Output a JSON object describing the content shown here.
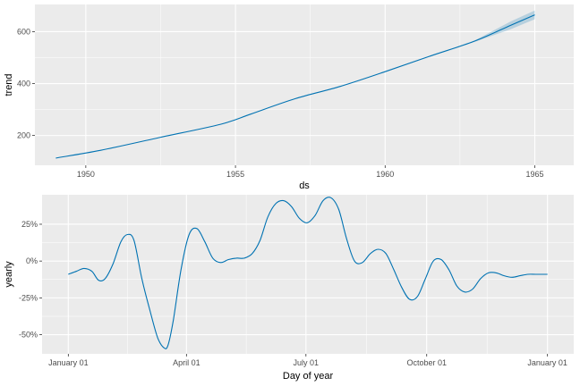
{
  "chart_data": [
    {
      "type": "line",
      "title": "",
      "xlabel": "ds",
      "ylabel": "trend",
      "xlim": [
        1948.3,
        1966.3
      ],
      "ylim": [
        85,
        705
      ],
      "x_ticks": [
        1950,
        1955,
        1960,
        1965
      ],
      "y_ticks": [
        200,
        400,
        600
      ],
      "grid": true,
      "series": [
        {
          "x": [
            1949.0,
            1950.5,
            1952.5,
            1954.5,
            1955.5,
            1957.0,
            1958.5,
            1960.0,
            1961.5,
            1963.0,
            1964.2,
            1965.0
          ],
          "values": [
            113,
            143,
            193,
            243,
            282,
            342,
            389,
            446,
            506,
            564,
            625,
            665
          ],
          "lower": [
            113,
            143,
            193,
            243,
            282,
            342,
            389,
            446,
            506,
            561,
            610,
            648
          ],
          "upper": [
            113,
            143,
            193,
            243,
            282,
            342,
            389,
            446,
            506,
            567,
            640,
            682
          ]
        }
      ],
      "colors": {
        "line": "#0072B2",
        "band": "#0072B2",
        "panel": "#EBEBEB",
        "grid": "#FFFFFF"
      }
    },
    {
      "type": "line",
      "title": "",
      "xlabel": "Day of year",
      "ylabel": "yearly",
      "xlim": [
        -20,
        385
      ],
      "ylim": [
        -0.63,
        0.45
      ],
      "x_ticks": [
        {
          "value": 0,
          "label": "January 01"
        },
        {
          "value": 90,
          "label": "April 01"
        },
        {
          "value": 181,
          "label": "July 01"
        },
        {
          "value": 273,
          "label": "October 01"
        },
        {
          "value": 365,
          "label": "January 01"
        }
      ],
      "y_ticks": [
        {
          "value": 0.25,
          "label": "25%"
        },
        {
          "value": 0,
          "label": "0%"
        },
        {
          "value": -0.25,
          "label": "-25%"
        },
        {
          "value": -0.5,
          "label": "-50%"
        }
      ],
      "grid": true,
      "series": [
        {
          "x": [
            0,
            6,
            12,
            18,
            23,
            28,
            34,
            40,
            45,
            50,
            56,
            62,
            68,
            73,
            76,
            80,
            86,
            92,
            98,
            104,
            110,
            116,
            122,
            128,
            134,
            140,
            146,
            152,
            158,
            164,
            170,
            176,
            182,
            188,
            194,
            200,
            206,
            212,
            218,
            224,
            230,
            236,
            242,
            248,
            254,
            260,
            266,
            272,
            278,
            284,
            290,
            296,
            302,
            308,
            314,
            320,
            326,
            332,
            338,
            344,
            350,
            356,
            362,
            365
          ],
          "values": [
            -0.09,
            -0.07,
            -0.05,
            -0.07,
            -0.13,
            -0.12,
            -0.02,
            0.13,
            0.18,
            0.14,
            -0.12,
            -0.33,
            -0.52,
            -0.59,
            -0.57,
            -0.4,
            -0.05,
            0.18,
            0.22,
            0.13,
            0.02,
            -0.01,
            0.01,
            0.02,
            0.02,
            0.05,
            0.14,
            0.3,
            0.39,
            0.41,
            0.37,
            0.29,
            0.26,
            0.31,
            0.41,
            0.43,
            0.35,
            0.15,
            0.0,
            -0.01,
            0.05,
            0.08,
            0.05,
            -0.06,
            -0.18,
            -0.26,
            -0.24,
            -0.12,
            0.0,
            0.01,
            -0.06,
            -0.17,
            -0.21,
            -0.19,
            -0.12,
            -0.08,
            -0.08,
            -0.1,
            -0.11,
            -0.1,
            -0.09,
            -0.09,
            -0.09,
            -0.09
          ]
        }
      ],
      "colors": {
        "line": "#0072B2",
        "panel": "#EBEBEB",
        "grid": "#FFFFFF"
      }
    }
  ]
}
